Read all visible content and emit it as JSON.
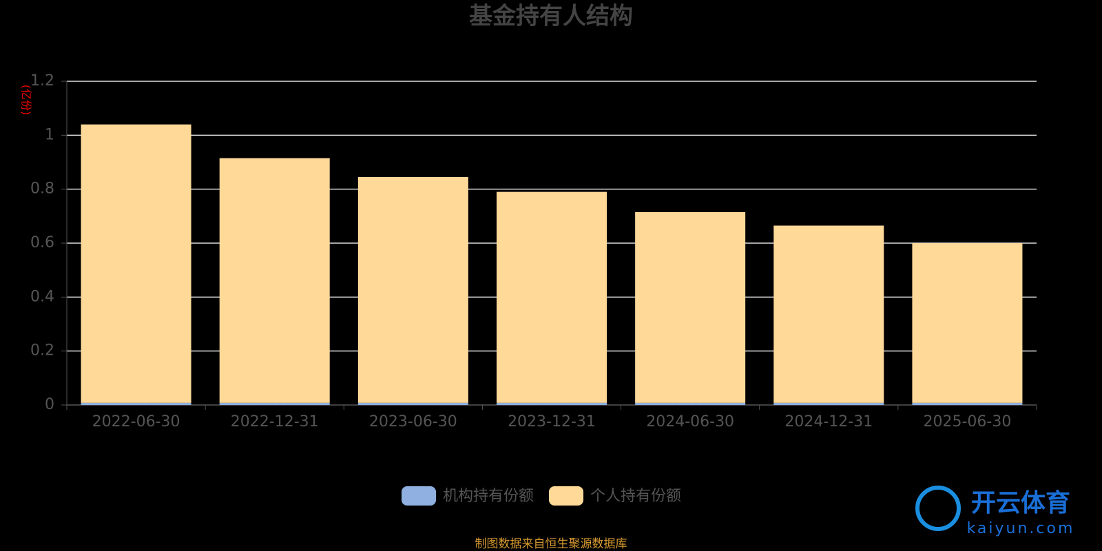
{
  "chart_data": {
    "type": "stacked-bar",
    "title": "基金持有人结构",
    "y_label": "(亿份)",
    "categories": [
      "2022-06-30",
      "2022-12-31",
      "2023-06-30",
      "2023-12-31",
      "2024-06-30",
      "2024-12-31",
      "2025-06-30"
    ],
    "series": [
      {
        "name": "机构持有份额",
        "color": "#8fb0e0",
        "values": [
          0.008,
          0.008,
          0.008,
          0.008,
          0.008,
          0.008,
          0.008
        ]
      },
      {
        "name": "个人持有份额",
        "color": "#ffd998",
        "values": [
          1.032,
          0.907,
          0.837,
          0.782,
          0.707,
          0.657,
          0.592
        ]
      }
    ],
    "ylim": [
      0,
      1.2
    ],
    "yticks": [
      0,
      0.2,
      0.4,
      0.6,
      0.8,
      1,
      1.2
    ],
    "grid": true,
    "source": "制图数据来自恒生聚源数据库",
    "watermark": {
      "brand": "开云体育",
      "site": "kaiyun.com"
    }
  }
}
